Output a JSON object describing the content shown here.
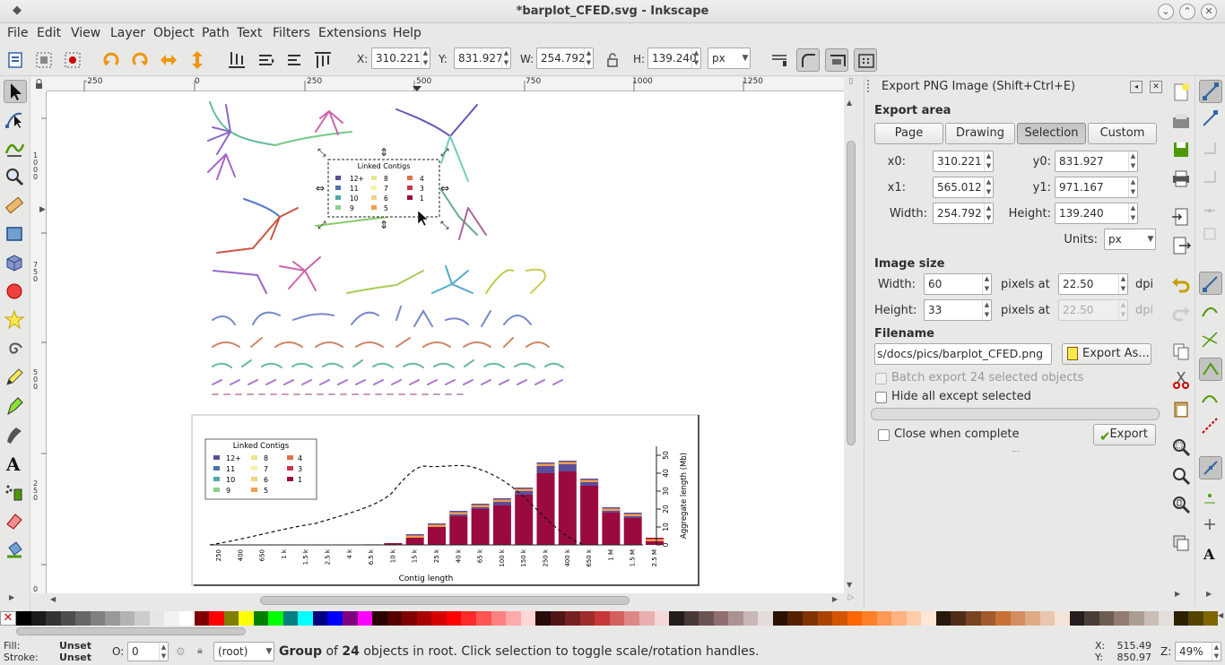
{
  "window": {
    "title": "*barplot_CFED.svg - Inkscape"
  },
  "menu": [
    "File",
    "Edit",
    "View",
    "Layer",
    "Object",
    "Path",
    "Text",
    "Filters",
    "Extensions",
    "Help"
  ],
  "toolctrl": {
    "x_label": "X:",
    "x": "310.221",
    "y_label": "Y:",
    "y": "831.927",
    "w_label": "W:",
    "w": "254.792",
    "h_label": "H:",
    "h": "139.240",
    "unit": "px"
  },
  "ruler": {
    "top_ticks": [
      "-250",
      "0",
      "250",
      "500",
      "750",
      "1000",
      "1250"
    ]
  },
  "dialog": {
    "title": "Export PNG Image (Shift+Ctrl+E)",
    "export_area": "Export area",
    "area_buttons": [
      "Page",
      "Drawing",
      "Selection",
      "Custom"
    ],
    "x0_label": "x0:",
    "x0": "310.221",
    "y0_label": "y0:",
    "y0": "831.927",
    "x1_label": "x1:",
    "x1": "565.012",
    "y1_label": "y1:",
    "y1": "971.167",
    "width_label": "Width:",
    "width": "254.792",
    "height_label": "Height:",
    "height": "139.240",
    "units_label": "Units:",
    "units": "px",
    "image_size": "Image size",
    "img_width_label": "Width:",
    "img_width": "60",
    "img_height_label": "Height:",
    "img_height": "33",
    "pixels_at": "pixels at",
    "dpi_w": "22.50",
    "dpi_h": "22.50",
    "dpi": "dpi",
    "filename_label": "Filename",
    "filename": "s/docs/pics/barplot_CFED.png",
    "export_as": "Export As...",
    "batch": "Batch export 24 selected objects",
    "hide_all": "Hide all except selected",
    "close_when": "Close when complete",
    "export": "Export"
  },
  "legend": {
    "title": "Linked Contigs",
    "items": [
      "12+",
      "8",
      "4",
      "11",
      "7",
      "3",
      "10",
      "6",
      "1",
      "9",
      "5"
    ]
  },
  "chart_data": {
    "type": "bar",
    "title": "",
    "xlabel": "Contig length",
    "ylabel": "Aggregate length (Mb)",
    "categories": [
      "250",
      "400",
      "650",
      "1 k",
      "1.5 k",
      "2.5 k",
      "4 k",
      "6.5 k",
      "10 k",
      "15 k",
      "25 k",
      "40 k",
      "65 k",
      "100 k",
      "150 k",
      "250 k",
      "400 k",
      "650 k",
      "1 M",
      "1.5 M",
      "2.5 M"
    ],
    "values": [
      0,
      0,
      0,
      0,
      0,
      0,
      0,
      0.3,
      1,
      6,
      12,
      19,
      23,
      26,
      32,
      46,
      47,
      37,
      21,
      18,
      4
    ],
    "series": [
      {
        "name": "1",
        "color": "#9b0a3e",
        "values": [
          0,
          0,
          0,
          0,
          0,
          0,
          0,
          0.3,
          1,
          5,
          10,
          16,
          20,
          22,
          28,
          40,
          41,
          33,
          18,
          15,
          4
        ]
      },
      {
        "name": "12+",
        "color": "#5a4d9b",
        "values": [
          0,
          0,
          0,
          0,
          0,
          0,
          0,
          0,
          0,
          1,
          2,
          3,
          3,
          4,
          4,
          6,
          6,
          4,
          3,
          3,
          0
        ]
      }
    ],
    "yticks": [
      "0",
      "10",
      "20",
      "30",
      "40",
      "50"
    ],
    "ylim": [
      0,
      55
    ],
    "line_style": "dashed"
  },
  "status": {
    "fill_label": "Fill:",
    "fill": "Unset",
    "stroke_label": "Stroke:",
    "stroke": "Unset",
    "opacity_label": "O:",
    "opacity": "0",
    "layer": "(root)",
    "msg_pre": "Group",
    "msg_of": " of ",
    "msg_count": "24",
    "msg_rest": " objects in root. Click selection to toggle scale/rotation handles.",
    "x_label": "X:",
    "x": "515.49",
    "y_label": "Y:",
    "y": "850.97",
    "zoom_label": "Z:",
    "zoom": "49%"
  },
  "palette": [
    "#000000",
    "#1a1a1a",
    "#333333",
    "#4d4d4d",
    "#666666",
    "#808080",
    "#999999",
    "#b3b3b3",
    "#cccccc",
    "#e6e6e6",
    "#f2f2f2",
    "#ffffff",
    "#800000",
    "#ff0000",
    "#808000",
    "#ffff00",
    "#008000",
    "#00ff00",
    "#008080",
    "#00ffff",
    "#000080",
    "#0000ff",
    "#800080",
    "#ff00ff",
    "#2b0000",
    "#550000",
    "#800000",
    "#aa0000",
    "#d40000",
    "#ff0000",
    "#ff2a2a",
    "#ff5555",
    "#ff8080",
    "#ffaaaa",
    "#ffd5d5",
    "#280b0b",
    "#501616",
    "#782121",
    "#a02c2c",
    "#c83737",
    "#d35f5f",
    "#de8787",
    "#e9afaf",
    "#f4d7d7",
    "#241c1c",
    "#483737",
    "#6c5353",
    "#916f6f",
    "#ac9393",
    "#c8b7b7",
    "#e3dbdb",
    "#2b1100",
    "#552200",
    "#803300",
    "#aa4400",
    "#d45500",
    "#ff6600",
    "#ff7f2a",
    "#ff9955",
    "#ffb380",
    "#ffccaa",
    "#ffe6d5",
    "#28170b",
    "#502d16",
    "#784421",
    "#a05a2c",
    "#c87137",
    "#d38d5f",
    "#deaa87",
    "#e9c6af",
    "#f4e3d7",
    "#241f1c",
    "#483e37",
    "#6c5d53",
    "#917c6f",
    "#ac9d93",
    "#c8beb7",
    "#e3dedb",
    "#2b2200",
    "#554400",
    "#806600"
  ]
}
